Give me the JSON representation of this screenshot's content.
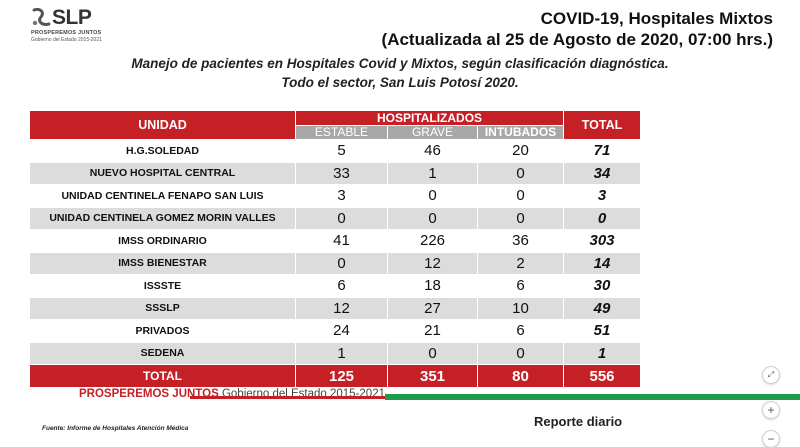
{
  "logo": {
    "name": "SLP",
    "line1": "PROSPEREMOS JUNTOS",
    "line2": "Gobierno del Estado 2015-2021"
  },
  "title": {
    "line1": "COVID-19, Hospitales Mixtos",
    "line2": "(Actualizada al 25 de Agosto de 2020, 07:00 hrs.)"
  },
  "subtitle": {
    "line1": "Manejo de pacientes en Hospitales Covid y Mixtos, según clasificación diagnóstica.",
    "line2": "Todo el sector, San Luis Potosí 2020."
  },
  "table": {
    "header_unidad": "UNIDAD",
    "header_group": "HOSPITALIZADOS",
    "header_total": "TOTAL",
    "sub_estable": "ESTABLE",
    "sub_grave": "GRAVE",
    "sub_intubados": "INTUBADOS",
    "rows": [
      {
        "name": "H.G.SOLEDAD",
        "estable": "5",
        "grave": "46",
        "intubados": "20",
        "total": "71"
      },
      {
        "name": "NUEVO HOSPITAL CENTRAL",
        "estable": "33",
        "grave": "1",
        "intubados": "0",
        "total": "34"
      },
      {
        "name": "UNIDAD CENTINELA FENAPO SAN LUIS",
        "estable": "3",
        "grave": "0",
        "intubados": "0",
        "total": "3"
      },
      {
        "name": "UNIDAD CENTINELA GOMEZ MORIN VALLES",
        "estable": "0",
        "grave": "0",
        "intubados": "0",
        "total": "0"
      },
      {
        "name": "IMSS ORDINARIO",
        "estable": "41",
        "grave": "226",
        "intubados": "36",
        "total": "303"
      },
      {
        "name": "IMSS BIENESTAR",
        "estable": "0",
        "grave": "12",
        "intubados": "2",
        "total": "14"
      },
      {
        "name": "ISSSTE",
        "estable": "6",
        "grave": "18",
        "intubados": "6",
        "total": "30"
      },
      {
        "name": "SSSLP",
        "estable": "12",
        "grave": "27",
        "intubados": "10",
        "total": "49"
      },
      {
        "name": "PRIVADOS",
        "estable": "24",
        "grave": "21",
        "intubados": "6",
        "total": "51"
      },
      {
        "name": "SEDENA",
        "estable": "1",
        "grave": "0",
        "intubados": "0",
        "total": "1"
      }
    ],
    "total_row": {
      "name": "TOTAL",
      "estable": "125",
      "grave": "351",
      "intubados": "80",
      "total": "556"
    }
  },
  "footer": {
    "brand_bold": "PROSPEREMOS JUNTOS",
    "brand_rest": "Gobierno del Estado 2015-2021",
    "source": "Fuente: Informe de Hospitales Atención Médica",
    "reporte": "Reporte diario"
  },
  "controls": {
    "expand": "⤢",
    "zoom_in": "+",
    "zoom_out": "−"
  },
  "colors": {
    "brand_red": "#c42026",
    "brand_green": "#1f9a4a",
    "subheader_gray": "#a8a8a8"
  }
}
